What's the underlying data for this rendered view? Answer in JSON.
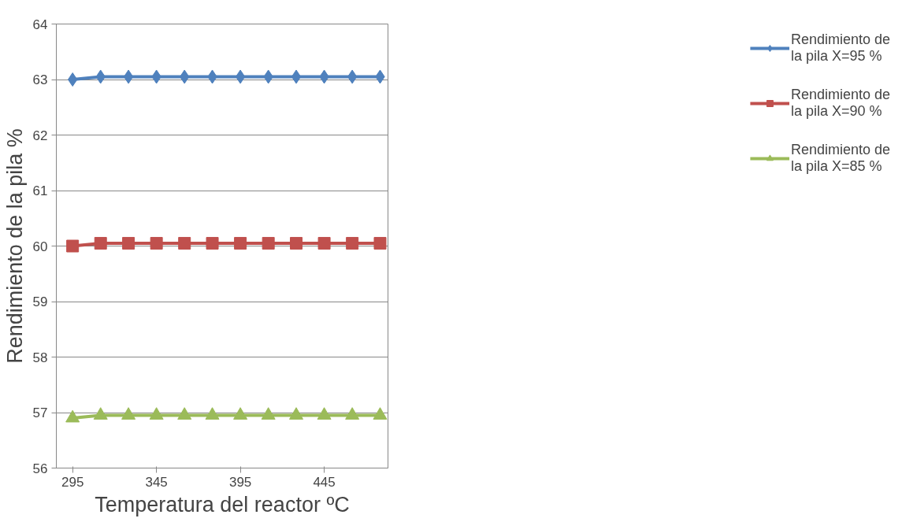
{
  "chart_data": {
    "type": "line",
    "xlabel": "Temperatura del reactor ºC",
    "ylabel": "Rendimiento de la pila %",
    "x": [
      295,
      311.7,
      328.3,
      345,
      361.7,
      378.3,
      395,
      411.7,
      428.3,
      445,
      461.7,
      478.3
    ],
    "xlim": [
      285.3,
      483
    ],
    "xticks": [
      295,
      345,
      395,
      445
    ],
    "ylim": [
      56,
      64
    ],
    "yticks": [
      56,
      57,
      58,
      59,
      60,
      61,
      62,
      63,
      64
    ],
    "grid": "y",
    "legend": "right",
    "line_style": "solid",
    "series": [
      {
        "name": "Rendimiento de la pila X=95 %",
        "color": "#4f81bd",
        "marker": "diamond",
        "values": [
          63.0,
          63.05,
          63.05,
          63.05,
          63.05,
          63.05,
          63.05,
          63.05,
          63.05,
          63.05,
          63.05,
          63.05
        ]
      },
      {
        "name": "Rendimiento de la pila X=90 %",
        "color": "#c0504d",
        "marker": "square",
        "values": [
          60.0,
          60.05,
          60.05,
          60.05,
          60.05,
          60.05,
          60.05,
          60.05,
          60.05,
          60.05,
          60.05,
          60.05
        ]
      },
      {
        "name": "Rendimiento de la pila X=85 %",
        "color": "#9bbb59",
        "marker": "triangle",
        "values": [
          56.9,
          56.95,
          56.95,
          56.95,
          56.95,
          56.95,
          56.95,
          56.95,
          56.95,
          56.95,
          56.95,
          56.95
        ]
      }
    ]
  }
}
